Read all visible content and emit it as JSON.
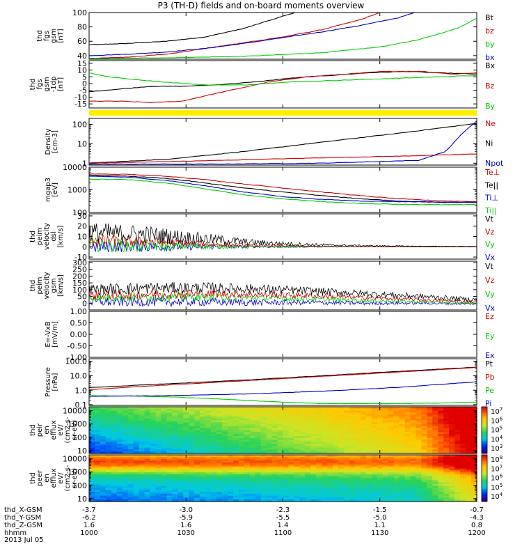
{
  "page": {
    "title": "P3 (TH-D) fields and on-board moments overview"
  },
  "chart_data": [
    {
      "type": "line",
      "id": "fgs_btot",
      "ylabel": [
        "thd",
        "fgs",
        "gsm",
        "[nT]"
      ],
      "ylim": [
        35,
        100
      ],
      "yscale": "linear",
      "yticks": [
        40,
        60,
        80,
        100
      ],
      "legend": [
        [
          "Bt",
          "#000000"
        ],
        [
          "bz",
          "#cc0000"
        ],
        [
          "by",
          "#00cc00"
        ],
        [
          "bx",
          "#0000cc"
        ]
      ],
      "series": [
        {
          "name": "Bt",
          "color": "#000000",
          "x": [
            0,
            0.1,
            0.2,
            0.3,
            0.4,
            0.5,
            0.55
          ],
          "y": [
            55,
            57,
            60,
            66,
            78,
            95,
            103
          ]
        },
        {
          "name": "bz",
          "color": "#cc0000",
          "x": [
            0,
            0.1,
            0.2,
            0.3,
            0.4,
            0.5,
            0.6,
            0.7,
            0.75
          ],
          "y": [
            36,
            38,
            42,
            50,
            58,
            66,
            76,
            90,
            100
          ]
        },
        {
          "name": "by",
          "color": "#00cc00",
          "x": [
            0,
            0.2,
            0.4,
            0.6,
            0.75,
            0.85,
            0.95,
            1.0
          ],
          "y": [
            36,
            37,
            39,
            44,
            52,
            62,
            78,
            92
          ]
        },
        {
          "name": "bx",
          "color": "#0000cc",
          "x": [
            0,
            0.1,
            0.2,
            0.3,
            0.4,
            0.5,
            0.6,
            0.7,
            0.8,
            0.84
          ],
          "y": [
            40,
            42,
            45,
            50,
            57,
            65,
            73,
            82,
            93,
            100
          ]
        }
      ]
    },
    {
      "type": "line",
      "id": "fgs_comp",
      "ylabel": [
        "thd",
        "fgs",
        "gsm",
        "-1dp",
        "[nT]"
      ],
      "ylim": [
        -18,
        17
      ],
      "yscale": "linear",
      "yticks": [
        -15,
        -10,
        -5,
        0,
        5,
        10,
        15
      ],
      "legend": [
        [
          "Bx",
          "#000000"
        ],
        [
          "Bz",
          "#cc0000"
        ],
        [
          "By",
          "#00cc00"
        ]
      ],
      "series": [
        {
          "name": "Bx",
          "color": "#000000",
          "x": [
            0,
            0.08,
            0.16,
            0.24,
            0.32,
            0.42,
            0.52,
            0.62,
            0.72,
            0.82,
            0.9,
            1.0
          ],
          "y": [
            -6,
            -4,
            -2,
            -2,
            -1,
            1,
            4,
            6,
            8,
            9,
            8,
            7
          ]
        },
        {
          "name": "Bz",
          "color": "#cc0000",
          "x": [
            0,
            0.08,
            0.16,
            0.24,
            0.3,
            0.38,
            0.46,
            0.56,
            0.66,
            0.76,
            0.86,
            0.94,
            1.0
          ],
          "y": [
            -13,
            -13,
            -14,
            -13,
            -9,
            -4,
            1,
            5,
            7,
            9,
            9,
            7,
            8
          ]
        },
        {
          "name": "By",
          "color": "#00cc00",
          "x": [
            0,
            0.05,
            0.12,
            0.2,
            0.3,
            0.4,
            0.5,
            0.6,
            0.7,
            0.8,
            0.9,
            1.0
          ],
          "y": [
            8,
            5,
            3,
            1,
            -1,
            -1,
            1,
            2,
            3,
            4,
            5,
            6
          ]
        }
      ]
    },
    {
      "type": "bar",
      "id": "flag",
      "color": "#ffee00"
    },
    {
      "type": "line",
      "id": "density",
      "ylabel": [
        "Density",
        "[cm-3]"
      ],
      "ylim": [
        0.8,
        200
      ],
      "yscale": "log",
      "yticks": [
        1,
        10,
        100
      ],
      "legend": [
        [
          "Ne",
          "#cc0000"
        ],
        [
          "Ni",
          "#000000"
        ],
        [
          "Npot",
          "#0000cc"
        ]
      ],
      "series": [
        {
          "name": "Ni",
          "color": "#000000",
          "x": [
            0,
            0.2,
            0.4,
            0.6,
            0.8,
            1.0
          ],
          "y": [
            1.0,
            1.6,
            4,
            12,
            35,
            110
          ]
        },
        {
          "name": "Ne",
          "color": "#cc0000",
          "x": [
            0,
            0.2,
            0.4,
            0.6,
            0.8,
            0.9,
            1.0
          ],
          "y": [
            1.0,
            1.2,
            1.5,
            1.9,
            2.3,
            2.6,
            3.0
          ]
        },
        {
          "name": "Npot",
          "color": "#0000cc",
          "x": [
            0,
            0.3,
            0.6,
            0.85,
            0.92,
            0.96,
            1.0
          ],
          "y": [
            0.9,
            0.9,
            1.0,
            1.4,
            4,
            30,
            150
          ]
        }
      ]
    },
    {
      "type": "line",
      "id": "temps",
      "ylabel": [
        "mgap3",
        "[eV]"
      ],
      "ylim": [
        100,
        10000
      ],
      "yscale": "log",
      "yticks": [
        100,
        1000,
        10000
      ],
      "legend": [
        [
          "Te⊥",
          "#cc0000"
        ],
        [
          "Te||",
          "#000000"
        ],
        [
          "Ti⊥",
          "#0000cc"
        ],
        [
          "Ti||",
          "#00cc00"
        ]
      ],
      "series": [
        {
          "name": "Te⊥",
          "color": "#cc0000",
          "x": [
            0,
            0.1,
            0.2,
            0.3,
            0.4,
            0.5,
            0.6,
            0.7,
            0.8,
            0.9,
            1.0
          ],
          "y": [
            5000,
            4800,
            4000,
            2800,
            1800,
            1200,
            800,
            550,
            400,
            330,
            300
          ]
        },
        {
          "name": "Te||",
          "color": "#000000",
          "x": [
            0,
            0.1,
            0.2,
            0.3,
            0.4,
            0.5,
            0.6,
            0.7,
            0.8,
            0.9,
            1.0
          ],
          "y": [
            4500,
            4000,
            3200,
            2000,
            1200,
            800,
            550,
            400,
            320,
            280,
            270
          ]
        },
        {
          "name": "Ti⊥",
          "color": "#0000cc",
          "x": [
            0,
            0.1,
            0.2,
            0.3,
            0.4,
            0.5,
            0.6,
            0.7,
            0.8,
            0.9,
            1.0
          ],
          "y": [
            4000,
            3600,
            2600,
            1500,
            800,
            500,
            380,
            320,
            300,
            290,
            280
          ]
        },
        {
          "name": "Ti||",
          "color": "#00cc00",
          "x": [
            0,
            0.1,
            0.2,
            0.3,
            0.4,
            0.5,
            0.6,
            0.7,
            0.8,
            0.9,
            1.0
          ],
          "y": [
            3000,
            2800,
            2000,
            1100,
            600,
            400,
            300,
            250,
            230,
            220,
            220
          ]
        }
      ]
    },
    {
      "type": "line",
      "id": "vel_dsl",
      "ylabel": [
        "thd",
        "peim",
        "velocity",
        "dsl",
        "[km/s]"
      ],
      "ylim": [
        -12,
        32
      ],
      "yscale": "linear",
      "yticks": [
        -10,
        0,
        10,
        20,
        30
      ],
      "legend": [
        [
          "Vt",
          "#000000"
        ],
        [
          "Vz",
          "#cc0000"
        ],
        [
          "Vy",
          "#00cc00"
        ],
        [
          "Vx",
          "#0000cc"
        ]
      ],
      "noise": [
        {
          "name": "Vt",
          "color": "#000000",
          "base": [
            14,
            12,
            8,
            4,
            2,
            1,
            0.5,
            0.3
          ],
          "amp": [
            10,
            9,
            6,
            3,
            1.5,
            0.6,
            0.3,
            0.2
          ]
        },
        {
          "name": "Vz",
          "color": "#cc0000",
          "base": [
            6,
            5,
            3,
            1,
            0.5,
            0.2,
            0,
            0
          ],
          "amp": [
            6,
            5,
            3,
            1.5,
            0.6,
            0.3,
            0.1,
            0.1
          ]
        },
        {
          "name": "Vy",
          "color": "#00cc00",
          "base": [
            2,
            1,
            0.5,
            0,
            0,
            0,
            0,
            0
          ],
          "amp": [
            7,
            6,
            3,
            1.5,
            0.6,
            0.3,
            0.1,
            0.1
          ]
        },
        {
          "name": "Vx",
          "color": "#0000cc",
          "base": [
            0,
            0,
            0,
            0,
            0,
            0,
            0,
            0
          ],
          "amp": [
            6,
            5,
            3,
            1,
            0.5,
            0.2,
            0.1,
            0.1
          ]
        }
      ]
    },
    {
      "type": "line",
      "id": "vel_gsm",
      "ylabel": [
        "thd",
        "peim",
        "velocity",
        "gsm",
        "[km/s]"
      ],
      "ylim": [
        -50,
        310
      ],
      "yscale": "linear",
      "yticks": [
        0,
        50,
        100,
        150,
        200,
        250,
        300
      ],
      "legend": [
        [
          "Vt",
          "#000000"
        ],
        [
          "Vz",
          "#cc0000"
        ],
        [
          "Vy",
          "#00cc00"
        ],
        [
          "Vx",
          "#0000cc"
        ]
      ],
      "noise": [
        {
          "name": "Vt",
          "color": "#000000",
          "base": [
            100,
            110,
            115,
            105,
            90,
            70,
            50,
            25
          ],
          "amp": [
            40,
            45,
            40,
            35,
            30,
            25,
            20,
            15
          ]
        },
        {
          "name": "Vz",
          "color": "#cc0000",
          "base": [
            60,
            65,
            70,
            65,
            55,
            40,
            25,
            10
          ],
          "amp": [
            35,
            35,
            30,
            25,
            20,
            15,
            12,
            10
          ]
        },
        {
          "name": "Vy",
          "color": "#00cc00",
          "base": [
            40,
            45,
            45,
            40,
            30,
            20,
            10,
            0
          ],
          "amp": [
            30,
            30,
            28,
            22,
            18,
            14,
            10,
            8
          ]
        },
        {
          "name": "Vx",
          "color": "#0000cc",
          "base": [
            10,
            10,
            10,
            5,
            5,
            0,
            0,
            -5
          ],
          "amp": [
            35,
            35,
            32,
            25,
            18,
            14,
            10,
            8
          ]
        }
      ]
    },
    {
      "type": "line",
      "id": "efield",
      "ylabel": [
        "E=-VxB",
        "[mV/m]"
      ],
      "ylim": [
        -1.0,
        1.0
      ],
      "yscale": "linear",
      "yticks": [
        -1.0,
        -0.5,
        0.0,
        0.5,
        1.0
      ],
      "ytick_labels": [
        "-1.00",
        "-0.50",
        "0.00",
        "0.50",
        "1.00"
      ],
      "legend": [
        [
          "Ez",
          "#cc0000"
        ],
        [
          "Ey",
          "#00cc00"
        ],
        [
          "Ex",
          "#0000cc"
        ]
      ],
      "series": []
    },
    {
      "type": "line",
      "id": "pressure",
      "ylabel": [
        "Pressure",
        "[nPa]"
      ],
      "ylim": [
        0.09,
        150
      ],
      "yscale": "log",
      "yticks": [
        0.1,
        1.0,
        10.0,
        100.0
      ],
      "ytick_labels": [
        "0.1",
        "1.0",
        "10.0",
        "100.0"
      ],
      "legend": [
        [
          "Pt",
          "#000000"
        ],
        [
          "Pb",
          "#cc0000"
        ],
        [
          "Pe",
          "#00cc00"
        ],
        [
          "Pi",
          "#0000cc"
        ]
      ],
      "series": [
        {
          "name": "Pt",
          "color": "#000000",
          "x": [
            0,
            0.2,
            0.4,
            0.6,
            0.8,
            1.0
          ],
          "y": [
            1.5,
            2.8,
            5,
            10,
            20,
            40
          ]
        },
        {
          "name": "Pb",
          "color": "#cc0000",
          "x": [
            0,
            0.2,
            0.4,
            0.6,
            0.8,
            1.0
          ],
          "y": [
            1.1,
            2.3,
            4.5,
            9,
            18,
            38
          ]
        },
        {
          "name": "Pe",
          "color": "#00cc00",
          "x": [
            0,
            0.1,
            0.2,
            0.3,
            0.4,
            0.5,
            0.6,
            0.7,
            0.8,
            0.9,
            1.0
          ],
          "y": [
            0.42,
            0.4,
            0.35,
            0.28,
            0.2,
            0.15,
            0.12,
            0.12,
            0.12,
            0.13,
            0.15
          ]
        },
        {
          "name": "Pi",
          "color": "#0000cc",
          "x": [
            0,
            0.2,
            0.4,
            0.6,
            0.8,
            1.0
          ],
          "y": [
            0.38,
            0.42,
            0.55,
            0.85,
            1.6,
            3.8
          ]
        }
      ]
    },
    {
      "type": "heatmap",
      "id": "peir",
      "ylabel": [
        "thd",
        "peir",
        "en",
        "efflux",
        "eV/",
        "(cm2-s-",
        "sr-eV)"
      ],
      "ylim": [
        6,
        20000
      ],
      "yscale": "log",
      "yticks": [
        10,
        100,
        1000,
        10000
      ],
      "colorbar": {
        "labels": [
          "10^7",
          "10^6",
          "10^5",
          "10^4",
          "10^3"
        ]
      }
    },
    {
      "type": "heatmap",
      "id": "peer",
      "ylabel": [
        "thd",
        "peer",
        "en",
        "efflux",
        "eV/",
        "(cm2-s-",
        "sr-eV)"
      ],
      "ylim": [
        6,
        20000
      ],
      "yscale": "log",
      "yticks": [
        10,
        100,
        1000,
        10000
      ],
      "colorbar": {
        "labels": [
          "10^8",
          "10^7",
          "10^6",
          "10^5",
          "10^4"
        ]
      }
    }
  ],
  "xaxis": {
    "row_labels": [
      "thd_X-GSM",
      "thd_Y-GSM",
      "thd_Z-GSM",
      "hhmm",
      "2013 Jul 05"
    ],
    "ticks": [
      {
        "x": 0.0,
        "vals": [
          "-3.7",
          "-6.2",
          "1.6",
          "1000"
        ]
      },
      {
        "x": 0.25,
        "vals": [
          "-3.0",
          "-5.9",
          "1.6",
          "1030"
        ]
      },
      {
        "x": 0.5,
        "vals": [
          "-2.3",
          "-5.5",
          "1.4",
          "1100"
        ]
      },
      {
        "x": 0.75,
        "vals": [
          "-1.5",
          "-5.0",
          "1.1",
          "1130"
        ]
      },
      {
        "x": 1.0,
        "vals": [
          "-0.7",
          "-4.3",
          "0.8",
          "1200"
        ]
      }
    ]
  }
}
